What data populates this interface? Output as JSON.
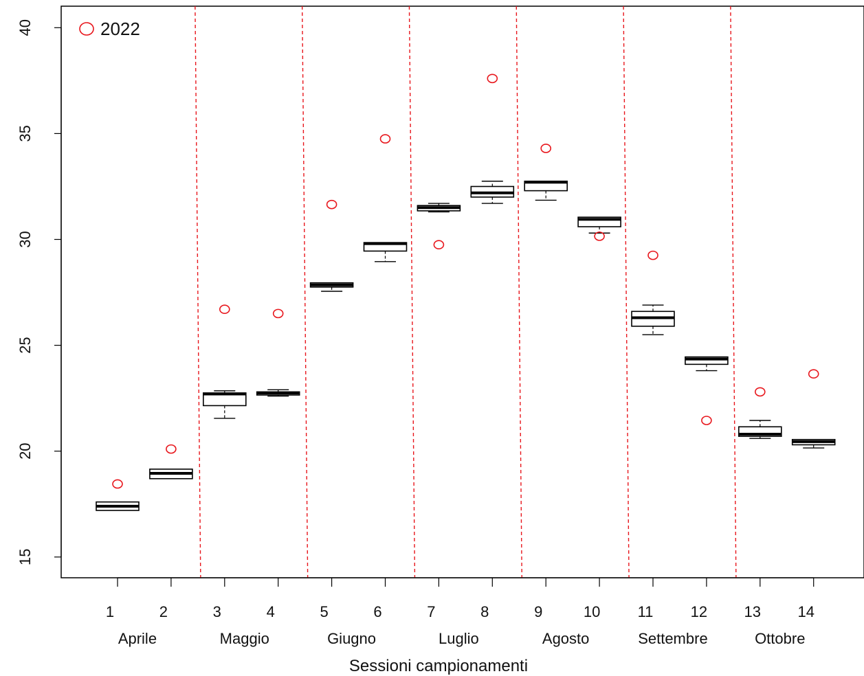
{
  "chart_data": {
    "type": "boxplot",
    "title": "",
    "xlabel": "Sessioni campionamenti",
    "ylabel": "",
    "ylim": [
      14,
      41
    ],
    "yticks": [
      15,
      20,
      25,
      30,
      35,
      40
    ],
    "categories": [
      "1",
      "2",
      "3",
      "4",
      "5",
      "6",
      "7",
      "8",
      "9",
      "10",
      "11",
      "12",
      "13",
      "14"
    ],
    "months": [
      {
        "label": "Aprile",
        "sessions": [
          1,
          2
        ]
      },
      {
        "label": "Maggio",
        "sessions": [
          3,
          4
        ]
      },
      {
        "label": "Giugno",
        "sessions": [
          5,
          6
        ]
      },
      {
        "label": "Luglio",
        "sessions": [
          7,
          8
        ]
      },
      {
        "label": "Agosto",
        "sessions": [
          9,
          10
        ]
      },
      {
        "label": "Settembre",
        "sessions": [
          11,
          12
        ]
      },
      {
        "label": "Ottobre",
        "sessions": [
          13,
          14
        ]
      }
    ],
    "month_separators_after_session": [
      2,
      4,
      6,
      8,
      10,
      12
    ],
    "boxes": [
      {
        "session": "1",
        "min": 17.2,
        "q1": 17.2,
        "median": 17.4,
        "q3": 17.6,
        "max": 17.6
      },
      {
        "session": "2",
        "min": 18.7,
        "q1": 18.7,
        "median": 18.95,
        "q3": 19.15,
        "max": 19.15
      },
      {
        "session": "3",
        "min": 21.55,
        "q1": 22.15,
        "median": 22.7,
        "q3": 22.75,
        "max": 22.85
      },
      {
        "session": "4",
        "min": 22.6,
        "q1": 22.65,
        "median": 22.75,
        "q3": 22.8,
        "max": 22.9
      },
      {
        "session": "5",
        "min": 27.55,
        "q1": 27.75,
        "median": 27.85,
        "q3": 27.95,
        "max": 27.95
      },
      {
        "session": "6",
        "min": 28.95,
        "q1": 29.45,
        "median": 29.8,
        "q3": 29.85,
        "max": 29.85
      },
      {
        "session": "7",
        "min": 31.3,
        "q1": 31.35,
        "median": 31.5,
        "q3": 31.6,
        "max": 31.7
      },
      {
        "session": "8",
        "min": 31.7,
        "q1": 32.0,
        "median": 32.2,
        "q3": 32.5,
        "max": 32.75
      },
      {
        "session": "9",
        "min": 31.85,
        "q1": 32.3,
        "median": 32.7,
        "q3": 32.75,
        "max": 32.75
      },
      {
        "session": "10",
        "min": 30.3,
        "q1": 30.6,
        "median": 30.95,
        "q3": 31.05,
        "max": 31.05
      },
      {
        "session": "11",
        "min": 25.5,
        "q1": 25.9,
        "median": 26.3,
        "q3": 26.6,
        "max": 26.9
      },
      {
        "session": "12",
        "min": 23.8,
        "q1": 24.1,
        "median": 24.35,
        "q3": 24.45,
        "max": 24.45
      },
      {
        "session": "13",
        "min": 20.6,
        "q1": 20.7,
        "median": 20.8,
        "q3": 21.15,
        "max": 21.45
      },
      {
        "session": "14",
        "min": 20.15,
        "q1": 20.3,
        "median": 20.45,
        "q3": 20.55,
        "max": 20.55
      }
    ],
    "series": [
      {
        "name": "2022",
        "marker": "open-circle",
        "color": "#e8161c",
        "values": [
          18.45,
          20.1,
          26.7,
          26.5,
          31.65,
          34.75,
          29.75,
          37.6,
          34.3,
          30.15,
          29.25,
          21.45,
          22.8,
          23.65
        ]
      }
    ],
    "legend": {
      "position": "top-left",
      "entries": [
        "2022"
      ]
    },
    "grid": false,
    "colors": {
      "box": "#000000",
      "separator": "#e8161c",
      "points": "#e8161c"
    }
  }
}
